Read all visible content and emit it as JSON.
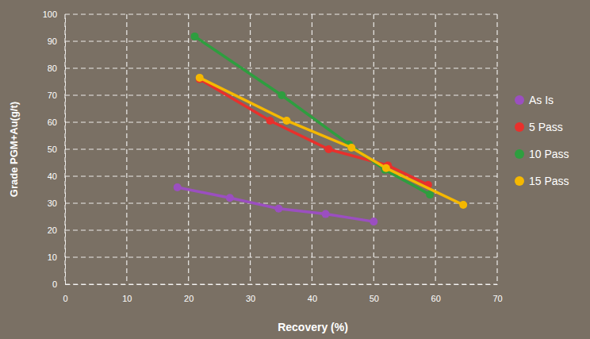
{
  "chart_data": {
    "type": "line",
    "x_label": "Recovery (%)",
    "y_label": "Grade PGM+Au(g/t)",
    "xlim": [
      0,
      70
    ],
    "xticks": [
      0,
      10,
      20,
      30,
      40,
      50,
      60,
      70
    ],
    "ylim": [
      0,
      100
    ],
    "yticks": [
      0,
      10,
      20,
      30,
      40,
      50,
      60,
      70,
      80,
      90,
      100
    ],
    "grid": true,
    "legend": "right",
    "marker": "circle",
    "series": [
      {
        "name": "As Is",
        "color": "#9b4fc0",
        "x": [
          18.2,
          26.7,
          34.6,
          42.2,
          50.0
        ],
        "values": [
          35.9,
          32.0,
          28.0,
          26.0,
          23.2
        ]
      },
      {
        "name": "5 Pass",
        "color": "#e8302c",
        "x": [
          21.8,
          33.2,
          42.7,
          52.3,
          58.8
        ],
        "values": [
          76.0,
          60.6,
          50.0,
          44.0,
          36.8
        ]
      },
      {
        "name": "10 Pass",
        "color": "#2e9e3f",
        "x": [
          21.0,
          35.1,
          46.0,
          51.8,
          59.1
        ],
        "values": [
          91.8,
          70.0,
          51.8,
          42.4,
          33.2
        ]
      },
      {
        "name": "15 Pass",
        "color": "#f5b800",
        "x": [
          21.8,
          35.9,
          46.4,
          52.0,
          64.5
        ],
        "values": [
          76.5,
          60.6,
          50.6,
          43.0,
          29.4
        ]
      }
    ]
  }
}
